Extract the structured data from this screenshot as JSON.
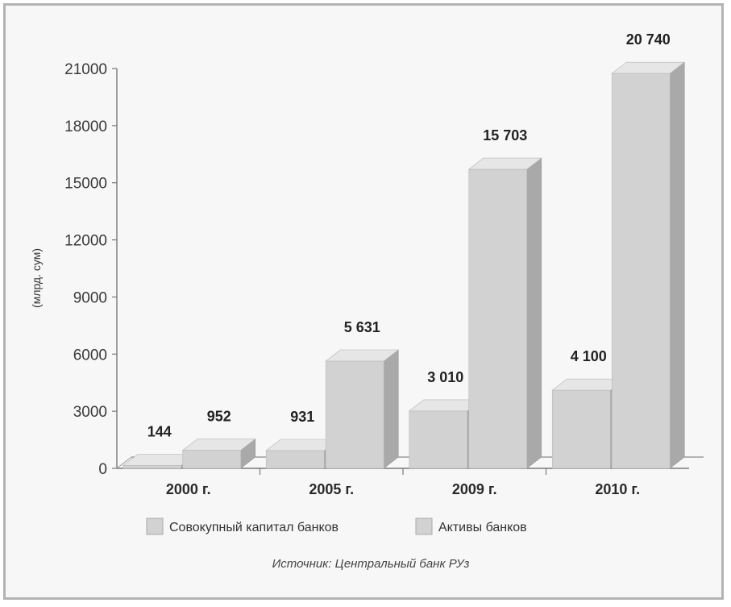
{
  "chart_data": {
    "type": "bar",
    "categories": [
      "2000 г.",
      "2005 г.",
      "2009 г.",
      "2010 г."
    ],
    "series": [
      {
        "name": "Совокупный капитал банков",
        "values": [
          144,
          931,
          3010,
          4100
        ],
        "labels": [
          "144",
          "931",
          "3 010",
          "4 100"
        ]
      },
      {
        "name": "Активы банков",
        "values": [
          952,
          5631,
          15703,
          20740
        ],
        "labels": [
          "952",
          "5 631",
          "15 703",
          "20 740"
        ]
      }
    ],
    "ylabel": "(млрд. сум)",
    "ylim": [
      0,
      21000
    ],
    "yticks": [
      0,
      3000,
      6000,
      9000,
      12000,
      15000,
      18000,
      21000
    ],
    "ytick_labels": [
      "0",
      "3000",
      "6000",
      "9000",
      "12000",
      "15000",
      "18000",
      "21000"
    ],
    "grid": false,
    "legend_position": "bottom",
    "colors": {
      "front": "#d2d2d2",
      "top": "#e6e6e6",
      "side": "#a9a9a9"
    }
  },
  "source": "Источник: Центральный банк РУз"
}
